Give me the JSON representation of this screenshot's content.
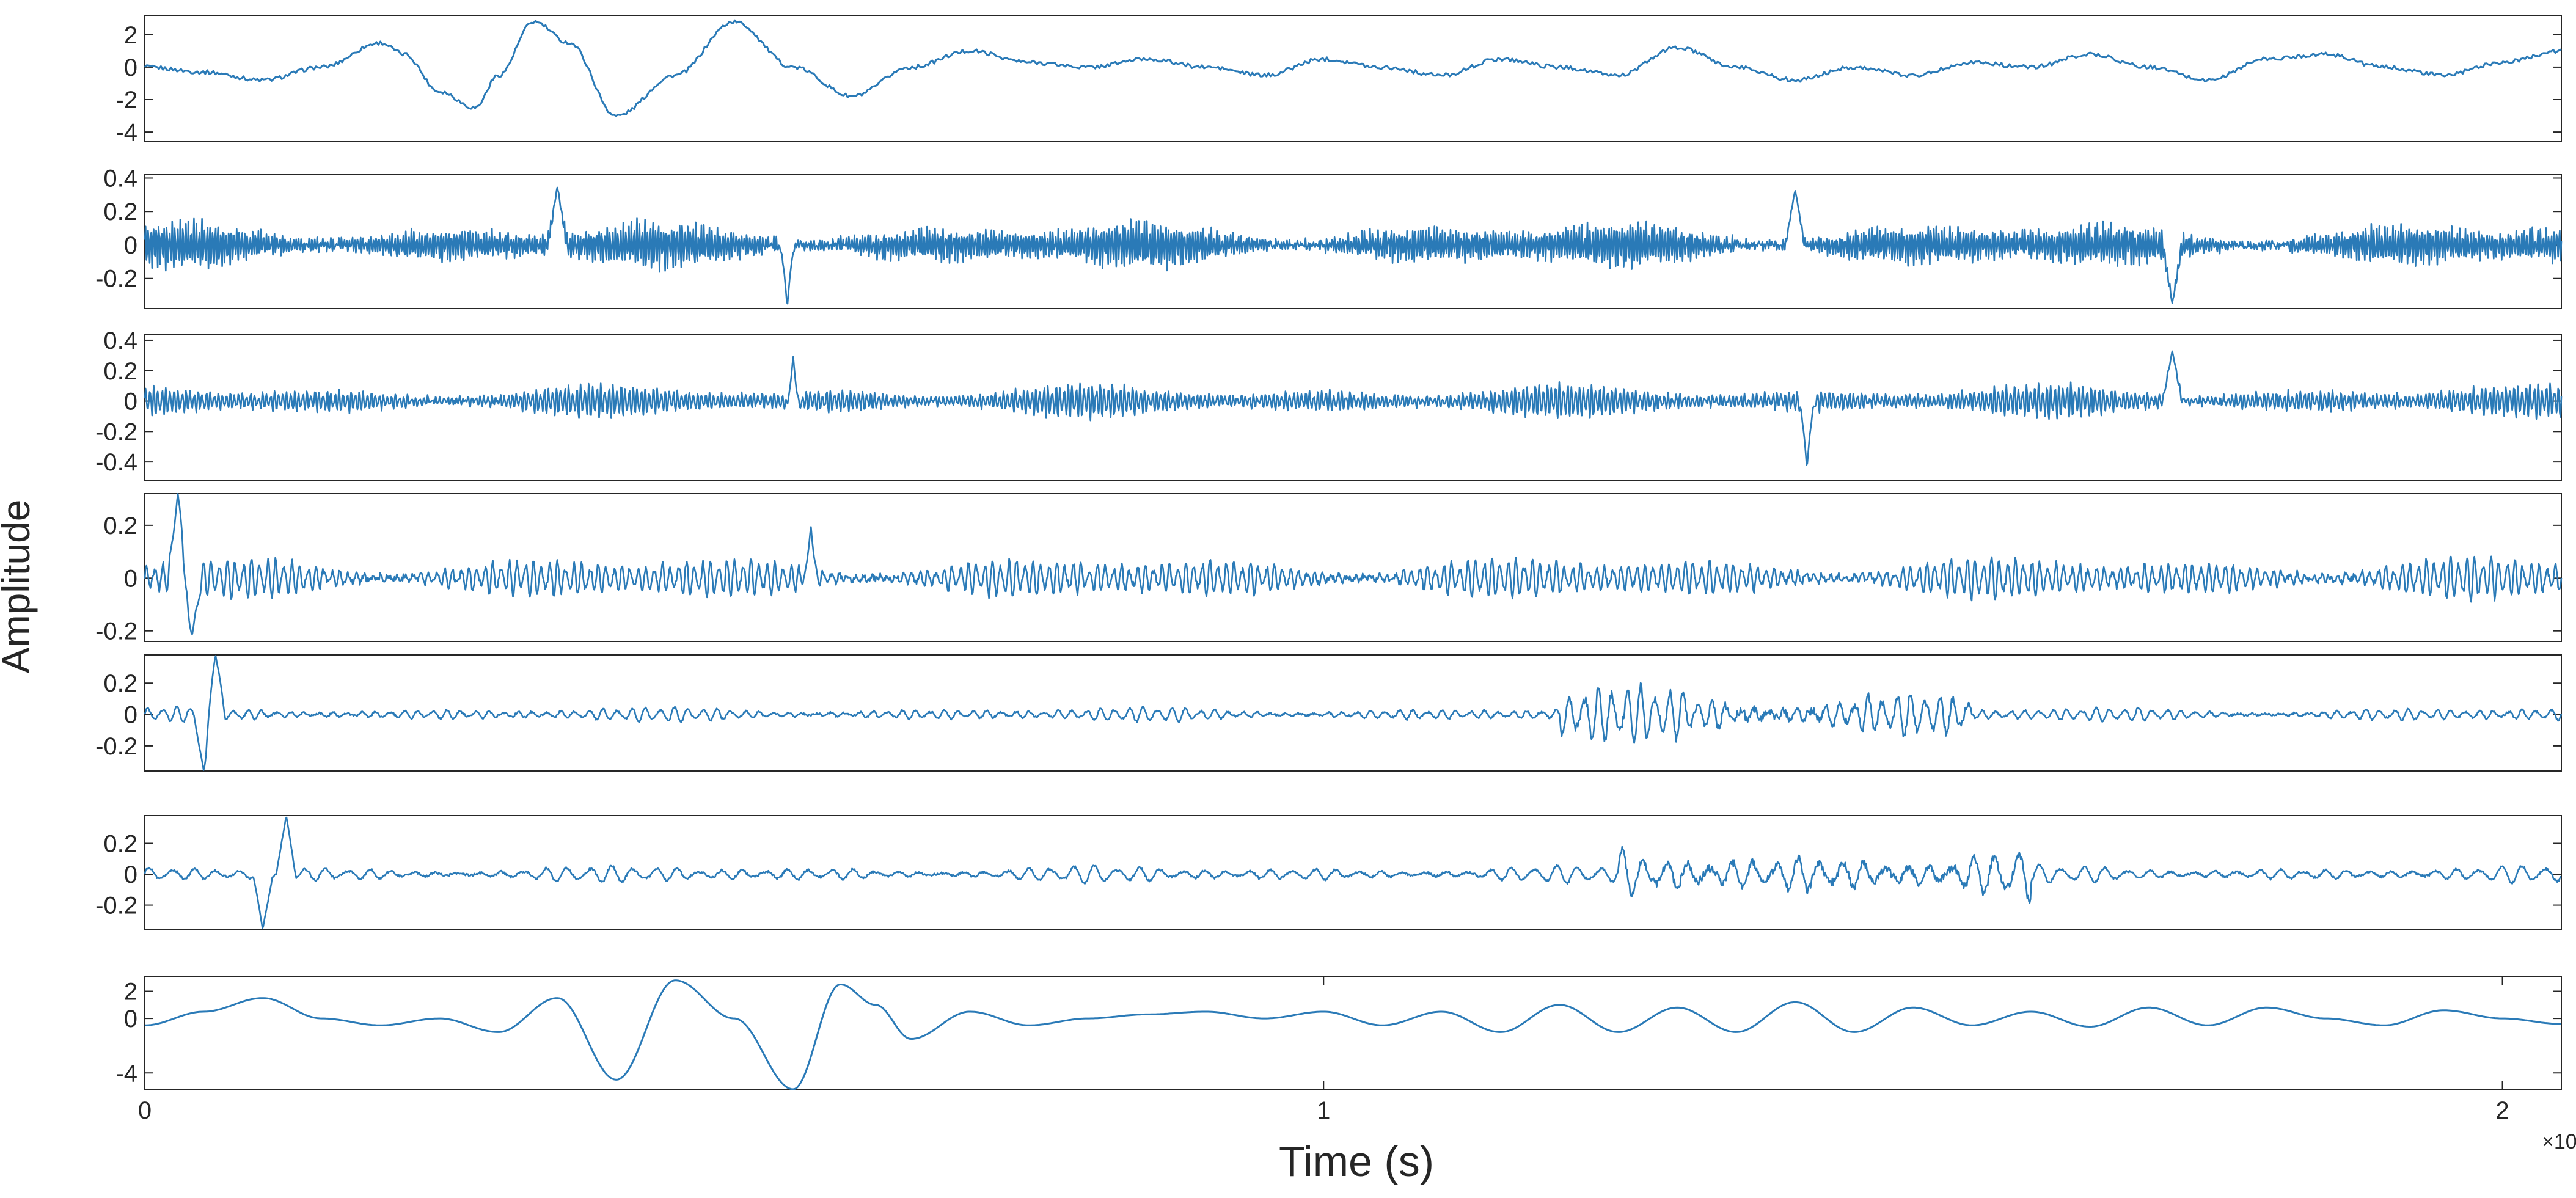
{
  "figure": {
    "ylabel": "Amplitude",
    "xlabel": "Time (s)",
    "x_exponent_base": "×10",
    "x_exponent_power": "-4",
    "line_color": "#2a7ab7"
  },
  "chart_data": [
    {
      "type": "line",
      "title": "",
      "xlabel": "",
      "ylabel": "",
      "xlim": [
        0,
        2.05
      ],
      "ylim": [
        -4.6,
        3.2
      ],
      "grid": false,
      "yticks": [
        2,
        0,
        -2,
        -4
      ],
      "ytick_labels": [
        "2",
        "0",
        "-2",
        "-4"
      ],
      "xticks": [],
      "series": [
        {
          "x": [
            0,
            0.05,
            0.1,
            0.15,
            0.2,
            0.22,
            0.25,
            0.28,
            0.3,
            0.33,
            0.36,
            0.4,
            0.45,
            0.5,
            0.55,
            0.6,
            0.65,
            0.7,
            0.75,
            0.8,
            0.85,
            0.9,
            0.95,
            1.0,
            1.05,
            1.1,
            1.15,
            1.2,
            1.25,
            1.3,
            1.35,
            1.4,
            1.45,
            1.5,
            1.55,
            1.6,
            1.65,
            1.7,
            1.75,
            1.8,
            1.85,
            1.9,
            1.95,
            2.0,
            2.05
          ],
          "y": [
            0,
            -0.3,
            -0.8,
            0,
            1.5,
            0.8,
            -1.5,
            -2.5,
            -0.5,
            2.8,
            1.5,
            -3.0,
            -0.5,
            2.8,
            0,
            -1.8,
            0,
            1.0,
            0.3,
            0,
            0.5,
            0,
            -0.5,
            0.5,
            0,
            -0.5,
            0.5,
            0,
            -0.5,
            1.2,
            0,
            -0.8,
            0,
            -0.5,
            0.3,
            0,
            0.8,
            0,
            -0.8,
            0.5,
            0.8,
            0,
            -0.5,
            0.3,
            1.0
          ]
        }
      ],
      "noise_level": 0.25,
      "oscillation": false
    },
    {
      "type": "line",
      "title": "",
      "xlabel": "",
      "ylabel": "",
      "xlim": [
        0,
        2.05
      ],
      "ylim": [
        -0.38,
        0.42
      ],
      "grid": false,
      "yticks": [
        0.4,
        0.2,
        0,
        -0.2
      ],
      "ytick_labels": [
        "0.4",
        "0.2",
        "0",
        "-0.2"
      ],
      "xticks": [],
      "series": [
        {
          "x": [
            0,
            2.05
          ],
          "y": [
            0,
            0
          ]
        }
      ],
      "noise_level": 0.16,
      "oscillation": true,
      "cycles": 900,
      "spikes": [
        {
          "x": 0.35,
          "y": 0.35
        },
        {
          "x": 0.545,
          "y": 0.42
        },
        {
          "x": 0.545,
          "y": -0.38
        },
        {
          "x": 1.4,
          "y": 0.33
        },
        {
          "x": 1.72,
          "y": -0.35
        }
      ]
    },
    {
      "type": "line",
      "title": "",
      "xlabel": "",
      "ylabel": "",
      "xlim": [
        0,
        2.05
      ],
      "ylim": [
        -0.52,
        0.44
      ],
      "grid": false,
      "yticks": [
        0.4,
        0.2,
        0,
        -0.2,
        -0.4
      ],
      "ytick_labels": [
        "0.4",
        "0.2",
        "0",
        "-0.2",
        "-0.4"
      ],
      "xticks": [],
      "series": [
        {
          "x": [
            0,
            2.05
          ],
          "y": [
            0,
            0
          ]
        }
      ],
      "noise_level": 0.12,
      "oscillation": true,
      "cycles": 600,
      "spikes": [
        {
          "x": 0.55,
          "y": -0.52
        },
        {
          "x": 0.55,
          "y": 0.3
        },
        {
          "x": 1.41,
          "y": 0.44
        },
        {
          "x": 1.41,
          "y": -0.45
        },
        {
          "x": 1.72,
          "y": 0.33
        }
      ]
    },
    {
      "type": "line",
      "title": "",
      "xlabel": "",
      "ylabel": "",
      "xlim": [
        0,
        2.05
      ],
      "ylim": [
        -0.24,
        0.32
      ],
      "grid": false,
      "yticks": [
        0.2,
        0,
        -0.2
      ],
      "ytick_labels": [
        "0.2",
        "0",
        "-0.2"
      ],
      "xticks": [],
      "series": [
        {
          "x": [
            0,
            2.05
          ],
          "y": [
            0,
            0
          ]
        }
      ],
      "noise_level": 0.09,
      "oscillation": true,
      "cycles": 300,
      "spikes": [
        {
          "x": 0.028,
          "y": 0.32
        },
        {
          "x": 0.04,
          "y": -0.22
        },
        {
          "x": 0.565,
          "y": -0.24
        },
        {
          "x": 0.565,
          "y": 0.2
        }
      ]
    },
    {
      "type": "line",
      "title": "",
      "xlabel": "",
      "ylabel": "",
      "xlim": [
        0,
        2.05
      ],
      "ylim": [
        -0.36,
        0.38
      ],
      "grid": false,
      "yticks": [
        0.2,
        0,
        -0.2
      ],
      "ytick_labels": [
        "0.2",
        "0",
        "-0.2"
      ],
      "xticks": [],
      "series": [
        {
          "x": [
            0,
            2.05
          ],
          "y": [
            0,
            0
          ]
        }
      ],
      "noise_level": 0.05,
      "oscillation": true,
      "cycles": 170,
      "bursts": [
        {
          "from": 1.2,
          "to": 1.55,
          "amp": 0.2
        }
      ],
      "spikes": [
        {
          "x": 0.05,
          "y": -0.36
        },
        {
          "x": 0.06,
          "y": 0.38
        }
      ]
    },
    {
      "type": "line",
      "title": "",
      "xlabel": "",
      "ylabel": "",
      "xlim": [
        0,
        2.05
      ],
      "ylim": [
        -0.36,
        0.38
      ],
      "grid": false,
      "yticks": [
        0.2,
        0,
        -0.2
      ],
      "ytick_labels": [
        "0.2",
        "0",
        "-0.2"
      ],
      "xticks": [],
      "series": [
        {
          "x": [
            0,
            2.05
          ],
          "y": [
            0,
            0
          ]
        }
      ],
      "noise_level": 0.06,
      "oscillation": true,
      "cycles": 110,
      "bursts": [
        {
          "from": 1.25,
          "to": 1.6,
          "amp": 0.2
        }
      ],
      "spikes": [
        {
          "x": 0.1,
          "y": -0.36
        },
        {
          "x": 0.12,
          "y": 0.38
        }
      ]
    },
    {
      "type": "line",
      "title": "",
      "xlabel": "Time (s)",
      "ylabel": "",
      "xlim": [
        0,
        2.05
      ],
      "ylim": [
        -5.2,
        3.1
      ],
      "grid": false,
      "yticks": [
        2,
        0,
        -4
      ],
      "ytick_labels": [
        "2",
        "0",
        "-4"
      ],
      "xticks": [
        0,
        1,
        2
      ],
      "xtick_labels": [
        "0",
        "1",
        "2"
      ],
      "series": [
        {
          "x": [
            0,
            0.05,
            0.1,
            0.15,
            0.2,
            0.25,
            0.3,
            0.35,
            0.4,
            0.45,
            0.5,
            0.55,
            0.59,
            0.62,
            0.65,
            0.7,
            0.75,
            0.8,
            0.85,
            0.9,
            0.95,
            1.0,
            1.05,
            1.1,
            1.15,
            1.2,
            1.25,
            1.3,
            1.35,
            1.4,
            1.45,
            1.5,
            1.55,
            1.6,
            1.65,
            1.7,
            1.75,
            1.8,
            1.85,
            1.9,
            1.95,
            2.0,
            2.05
          ],
          "y": [
            -0.5,
            0.5,
            1.5,
            0,
            -0.5,
            0,
            -1.0,
            1.5,
            -4.5,
            2.8,
            0,
            -5.2,
            2.5,
            1.0,
            -1.5,
            0.5,
            -0.5,
            0,
            0.3,
            0.5,
            0,
            0.5,
            -0.5,
            0.5,
            -1.0,
            1.0,
            -1.0,
            0.8,
            -1.0,
            1.2,
            -1.0,
            0.8,
            -0.5,
            0.5,
            -0.6,
            0.8,
            -0.5,
            0.8,
            0,
            -0.5,
            0.6,
            0,
            -0.4
          ]
        }
      ],
      "noise_level": 0,
      "oscillation": false
    }
  ]
}
